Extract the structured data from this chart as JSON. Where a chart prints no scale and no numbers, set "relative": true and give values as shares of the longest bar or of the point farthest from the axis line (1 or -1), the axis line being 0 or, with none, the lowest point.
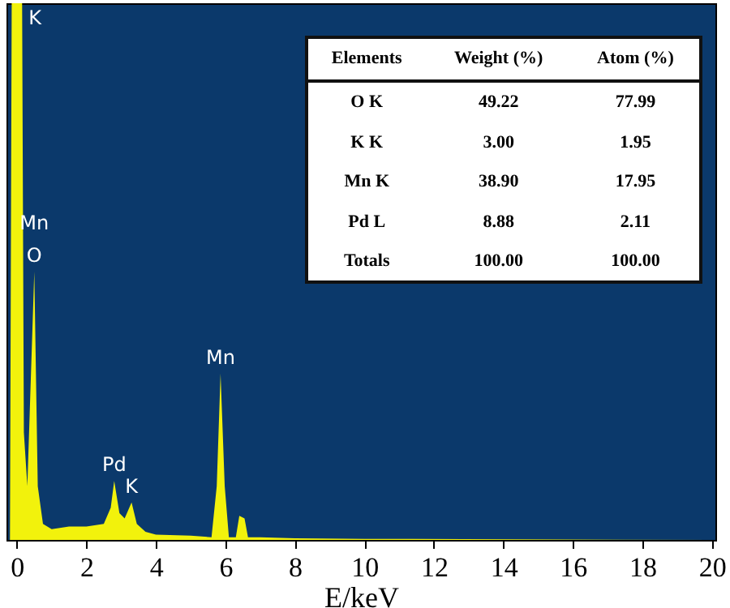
{
  "chart_data": [
    {
      "type": "area",
      "relative": true,
      "xlabel": "E/keV",
      "color": "#f2f20c",
      "xlim": [
        -0.3,
        20.1
      ],
      "xticks": [
        0,
        2,
        4,
        6,
        8,
        10,
        12,
        14,
        16,
        18,
        20
      ],
      "grid": false,
      "x": [
        -0.3,
        -0.2,
        -0.15,
        0.15,
        0.2,
        0.3,
        0.4,
        0.5,
        0.6,
        0.75,
        1,
        1.5,
        2,
        2.5,
        2.7,
        2.8,
        2.95,
        3.1,
        3.3,
        3.45,
        3.7,
        4,
        5,
        5.6,
        5.75,
        5.86,
        5.98,
        6.1,
        6.3,
        6.4,
        6.55,
        6.65,
        7,
        8,
        10,
        20
      ],
      "values": [
        0,
        0,
        1,
        1,
        0.2,
        0.1,
        0.3,
        0.5,
        0.1,
        0.03,
        0.02,
        0.025,
        0.025,
        0.03,
        0.06,
        0.11,
        0.05,
        0.04,
        0.07,
        0.03,
        0.015,
        0.01,
        0.008,
        0.005,
        0.1,
        0.31,
        0.1,
        0.005,
        0.005,
        0.045,
        0.04,
        0.005,
        0.005,
        0.003,
        0.002,
        0
      ],
      "annotations": [
        {
          "text": "K",
          "x": 0.15,
          "y": 1
        },
        {
          "text": "Mn",
          "x": 0.5,
          "y": 0.5
        },
        {
          "text": "O",
          "x": 0.5,
          "y": 0.5
        },
        {
          "text": "Pd",
          "x": 2.8,
          "y": 0.11
        },
        {
          "text": "K",
          "x": 3.3,
          "y": 0.07
        },
        {
          "text": "Mn",
          "x": 5.86,
          "y": 0.31
        }
      ]
    },
    {
      "type": "other",
      "ylabel": "Elements",
      "categories": [
        "Weight (%)",
        "Atom (%)"
      ],
      "y_categories": [
        "O K",
        "K K",
        "Mn K",
        "Pd L",
        "Totals"
      ],
      "cell_labels": [
        [
          "49.22",
          "77.99"
        ],
        [
          "3.00",
          "1.95"
        ],
        [
          "38.90",
          "17.95"
        ],
        [
          "8.88",
          "2.11"
        ],
        [
          "100.00",
          "100.00"
        ]
      ]
    }
  ]
}
